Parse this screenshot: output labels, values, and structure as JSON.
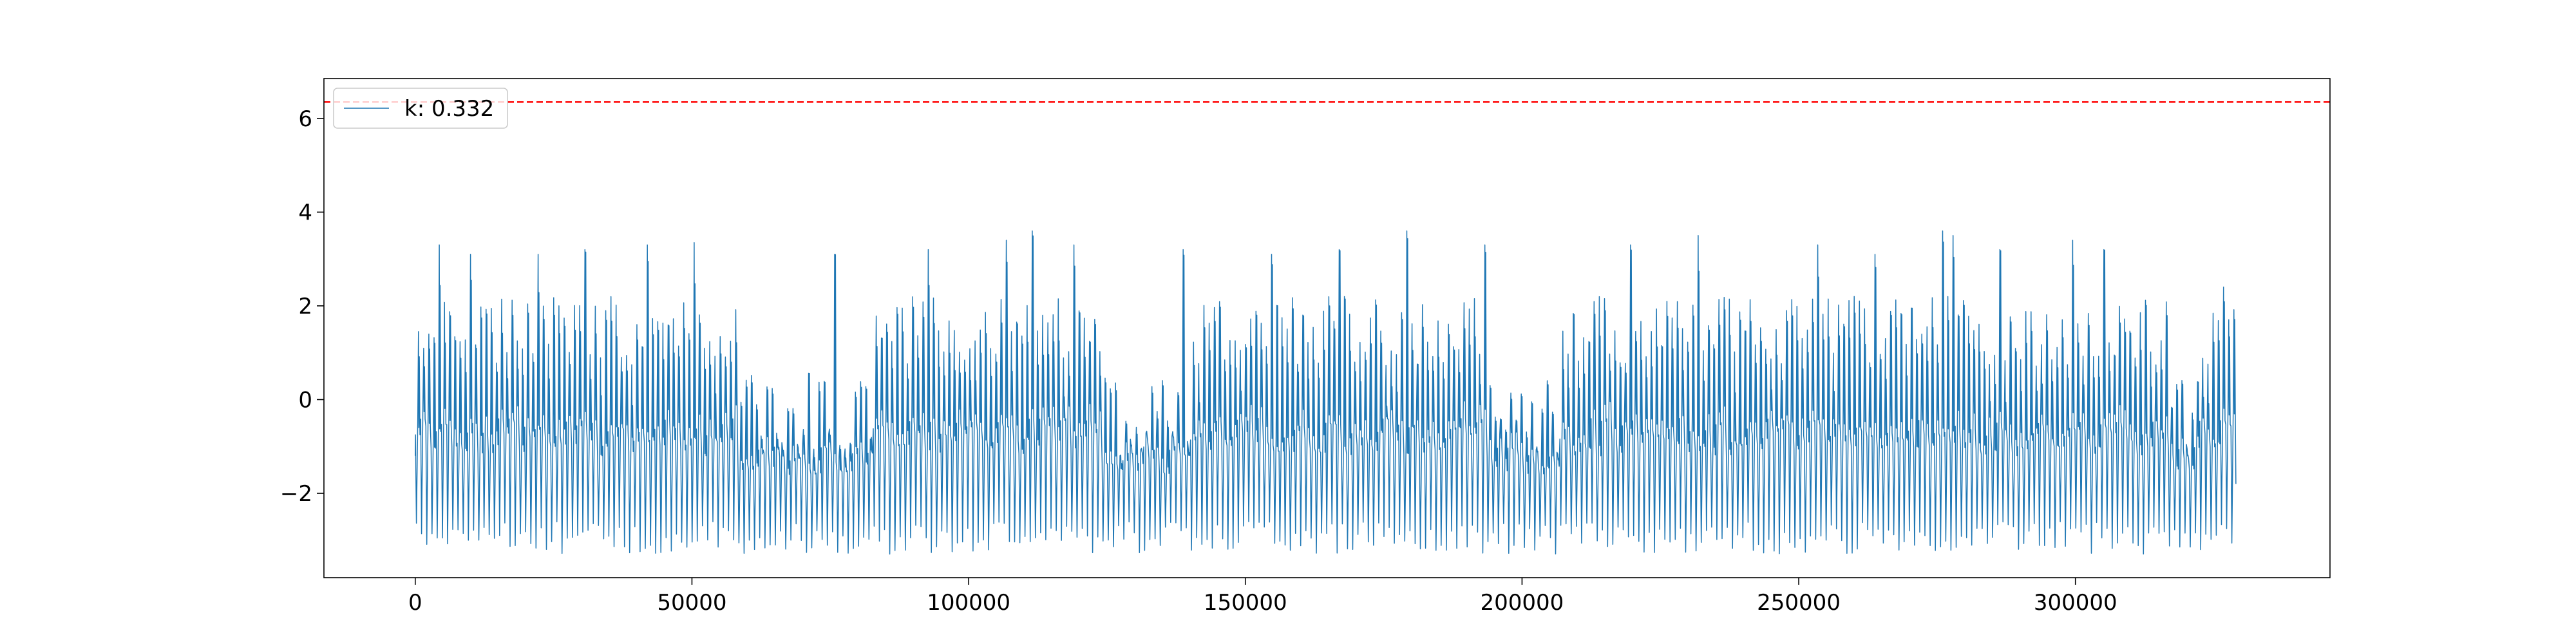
{
  "chart_data": {
    "type": "line",
    "title": "",
    "xlabel": "",
    "ylabel": "",
    "xlim": [
      -16500,
      346000
    ],
    "ylim": [
      -3.8,
      6.85
    ],
    "x_ticks": [
      0,
      50000,
      100000,
      150000,
      200000,
      250000,
      300000
    ],
    "x_tick_labels": [
      "0",
      "50000",
      "100000",
      "150000",
      "200000",
      "250000",
      "300000"
    ],
    "y_ticks": [
      -2,
      0,
      2,
      4,
      6
    ],
    "y_tick_labels": [
      "−2",
      "0",
      "2",
      "4",
      "6"
    ],
    "grid": false,
    "legend": {
      "placement": "top-left",
      "entries": [
        "k: 0.332"
      ]
    },
    "colors": {
      "series": "#1f77b4",
      "threshold": "#ff0000"
    },
    "threshold": {
      "value": 6.35,
      "style": "dashed"
    },
    "series": [
      {
        "name": "k: 0.332",
        "x_start": 0,
        "x_end": 329000,
        "n_cycles": 350,
        "trough_range": [
          -3.3,
          -2.6
        ],
        "peak_range": [
          -0.2,
          3.6
        ],
        "notable_peaks": [
          {
            "x": 4000,
            "y": 3.3
          },
          {
            "x": 9000,
            "y": 3.1
          },
          {
            "x": 22000,
            "y": 3.1
          },
          {
            "x": 30000,
            "y": 3.2
          },
          {
            "x": 41000,
            "y": 3.3
          },
          {
            "x": 50000,
            "y": 3.35
          },
          {
            "x": 75000,
            "y": 3.1
          },
          {
            "x": 92000,
            "y": 3.2
          },
          {
            "x": 106000,
            "y": 3.4
          },
          {
            "x": 111000,
            "y": 3.6
          },
          {
            "x": 118000,
            "y": 3.3
          },
          {
            "x": 138000,
            "y": 3.2
          },
          {
            "x": 154000,
            "y": 3.1
          },
          {
            "x": 166000,
            "y": 3.2
          },
          {
            "x": 179000,
            "y": 3.6
          },
          {
            "x": 193000,
            "y": 3.3
          },
          {
            "x": 219000,
            "y": 3.3
          },
          {
            "x": 231000,
            "y": 3.5
          },
          {
            "x": 253000,
            "y": 3.3
          },
          {
            "x": 263000,
            "y": 3.1
          },
          {
            "x": 275000,
            "y": 3.6
          },
          {
            "x": 277000,
            "y": 3.5
          },
          {
            "x": 286000,
            "y": 3.2
          },
          {
            "x": 299000,
            "y": 3.4
          },
          {
            "x": 305000,
            "y": 3.2
          },
          {
            "x": 326000,
            "y": 2.4
          }
        ],
        "low_activity_segments": [
          [
            58000,
            82000
          ],
          [
            124000,
            140000
          ],
          [
            193000,
            206000
          ],
          [
            316000,
            322000
          ]
        ]
      }
    ]
  }
}
